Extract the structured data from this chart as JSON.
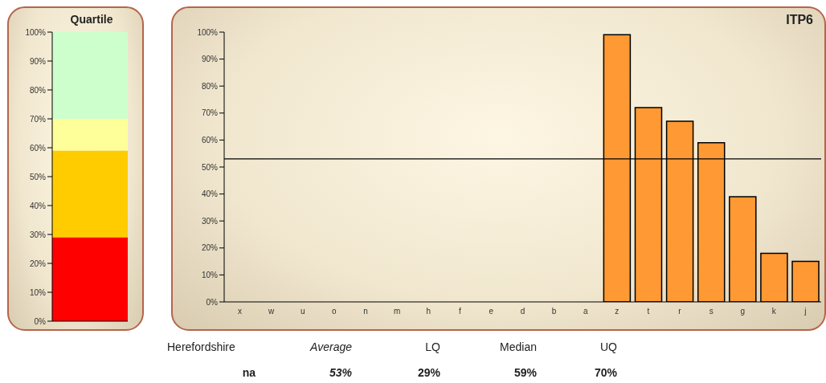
{
  "chart_data": [
    {
      "type": "bar",
      "title": "Quartile",
      "stacked": true,
      "categories": [
        null
      ],
      "tick_labels": "y",
      "series": [
        {
          "color": "#ff0000",
          "values": [
            29
          ]
        },
        {
          "color": "#ffcc00",
          "values": [
            30
          ]
        },
        {
          "color": "#ffff99",
          "values": [
            11
          ]
        },
        {
          "color": "#ccffcc",
          "values": [
            30
          ]
        }
      ],
      "ylim": [
        0,
        100
      ],
      "yticks": [
        {
          "value": 0,
          "label": "0%"
        },
        {
          "value": 10,
          "label": "10%"
        },
        {
          "value": 20,
          "label": "20%"
        },
        {
          "value": 30,
          "label": "30%"
        },
        {
          "value": 40,
          "label": "40%"
        },
        {
          "value": 50,
          "label": "50%"
        },
        {
          "value": 60,
          "label": "60%"
        },
        {
          "value": 70,
          "label": "70%"
        },
        {
          "value": 80,
          "label": "80%"
        },
        {
          "value": 90,
          "label": "90%"
        },
        {
          "value": 100,
          "label": "100%"
        }
      ]
    },
    {
      "type": "bar",
      "title": "ITP6",
      "categories": [
        "x",
        "w",
        "u",
        "o",
        "n",
        "m",
        "h",
        "f",
        "e",
        "d",
        "b",
        "a",
        "z",
        "t",
        "r",
        "s",
        "g",
        "k",
        "j"
      ],
      "values": [
        null,
        null,
        null,
        null,
        null,
        null,
        null,
        null,
        null,
        null,
        null,
        null,
        99,
        72,
        67,
        59,
        39,
        18,
        15
      ],
      "color": "#ff9933",
      "ylim": [
        0,
        100
      ],
      "yticks": [
        {
          "value": 0,
          "label": "0%"
        },
        {
          "value": 10,
          "label": "10%"
        },
        {
          "value": 20,
          "label": "20%"
        },
        {
          "value": 30,
          "label": "30%"
        },
        {
          "value": 40,
          "label": "40%"
        },
        {
          "value": 50,
          "label": "50%"
        },
        {
          "value": 60,
          "label": "60%"
        },
        {
          "value": 70,
          "label": "70%"
        },
        {
          "value": 80,
          "label": "80%"
        },
        {
          "value": 90,
          "label": "90%"
        },
        {
          "value": 100,
          "label": "100%"
        }
      ],
      "ref_lines": [
        {
          "axis": "y",
          "value": 53,
          "color": "#000000"
        }
      ],
      "annotations": [
        "Herefordshire",
        "Average",
        "LQ",
        "Median",
        "UQ",
        "na",
        "53%",
        "29%",
        "59%",
        "70%"
      ]
    }
  ]
}
